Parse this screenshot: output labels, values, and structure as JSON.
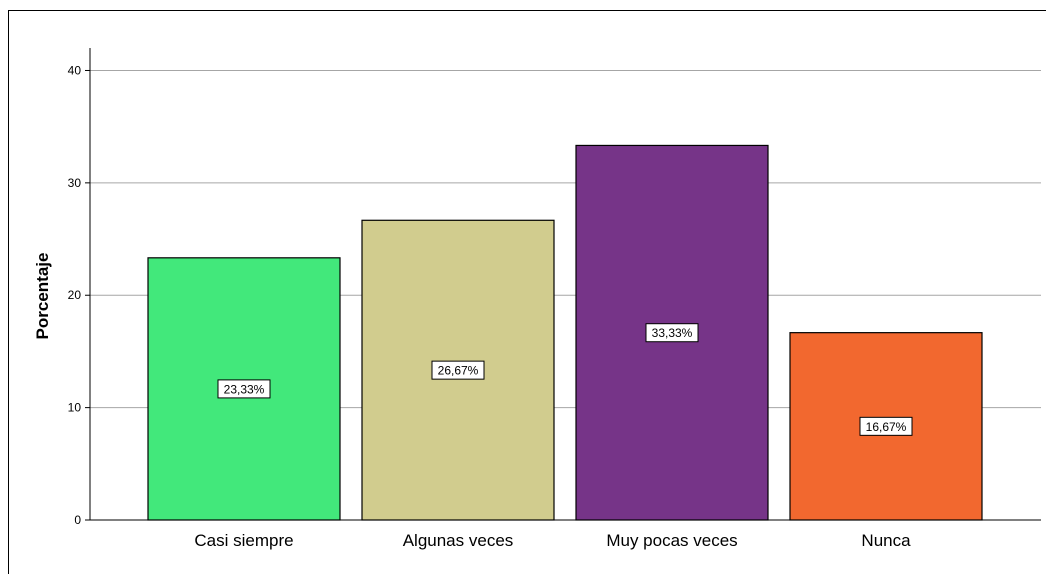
{
  "chart_data": {
    "type": "bar",
    "categories": [
      "Casi siempre",
      "Algunas veces",
      "Muy pocas veces",
      "Nunca"
    ],
    "values": [
      23.33,
      26.67,
      33.33,
      16.67
    ],
    "data_labels": [
      "23,33%",
      "26,67%",
      "33,33%",
      "16,67%"
    ],
    "colors": [
      "#42e87b",
      "#d1cc8e",
      "#763488",
      "#f2682f"
    ],
    "ylabel": "Porcentaje",
    "xlabel": "",
    "ylim": [
      0,
      42
    ],
    "yticks": [
      0,
      10,
      20,
      30,
      40
    ],
    "grid": true,
    "legend": "none"
  }
}
